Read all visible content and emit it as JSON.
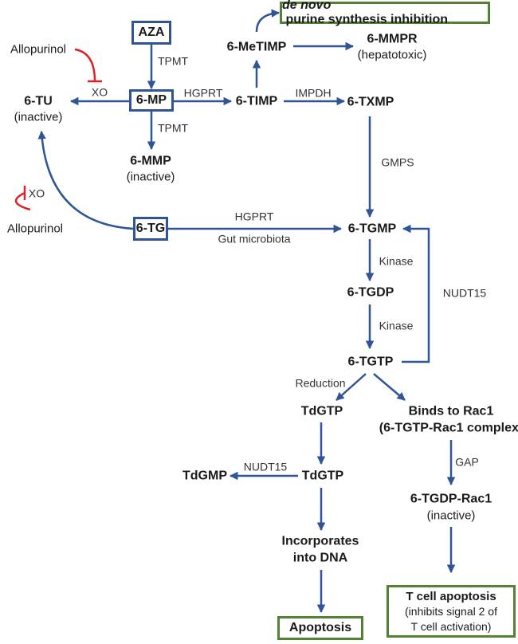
{
  "colors": {
    "arrow": "#2f5597",
    "inhibit": "#e02020",
    "start_box": "#2f5597",
    "outcome_box": "#548235"
  },
  "nodes": {
    "aza": "AZA",
    "mp": "6-MP",
    "tg": "6-TG",
    "tu": "6-TU",
    "tu_note": "(inactive)",
    "mmp": "6-MMP",
    "mmp_note": "(inactive)",
    "timp": "6-TIMP",
    "metimp": "6-MeTIMP",
    "mmpr": "6-MMPR",
    "mmpr_note": "(hepatotoxic)",
    "txmp": "6-TXMP",
    "tgmp": "6-TGMP",
    "tgdp": "6-TGDP",
    "tgtp": "6-TGTP",
    "tdgtp_1": "TdGTP",
    "tdgtp_2": "TdGTP",
    "tdgmp": "TdGMP",
    "incorporates_1": "Incorporates",
    "incorporates_2": "into DNA",
    "rac1_1": "Binds to Rac1",
    "rac1_2": "(6-TGTP-Rac1 complex)",
    "tgdp_rac1": "6-TGDP-Rac1",
    "tgdp_rac1_note": "(inactive)",
    "allopurinol_top": "Allopurinol",
    "allopurinol_bottom": "Allopurinol"
  },
  "outcomes": {
    "purine_italic": "de novo",
    "purine_rest": " purine synthesis inhibition",
    "apoptosis": "Apoptosis",
    "tcell_title": "T cell apoptosis",
    "tcell_sub1": "(inhibits signal 2 of",
    "tcell_sub2": "T cell activation)"
  },
  "edge_labels": {
    "tpmt_top": "TPMT",
    "tpmt_bottom": "TPMT",
    "hgprt_mp": "HGPRT",
    "xo_mp": "XO",
    "impdh": "IMPDH",
    "gmps": "GMPS",
    "hgprt_tg": "HGPRT",
    "gut_microbiota": "Gut microbiota",
    "xo_tg": "XO",
    "kinase_1": "Kinase",
    "kinase_2": "Kinase",
    "nudt15_right": "NUDT15",
    "reduction": "Reduction",
    "nudt15_left": "NUDT15",
    "gap": "GAP"
  }
}
